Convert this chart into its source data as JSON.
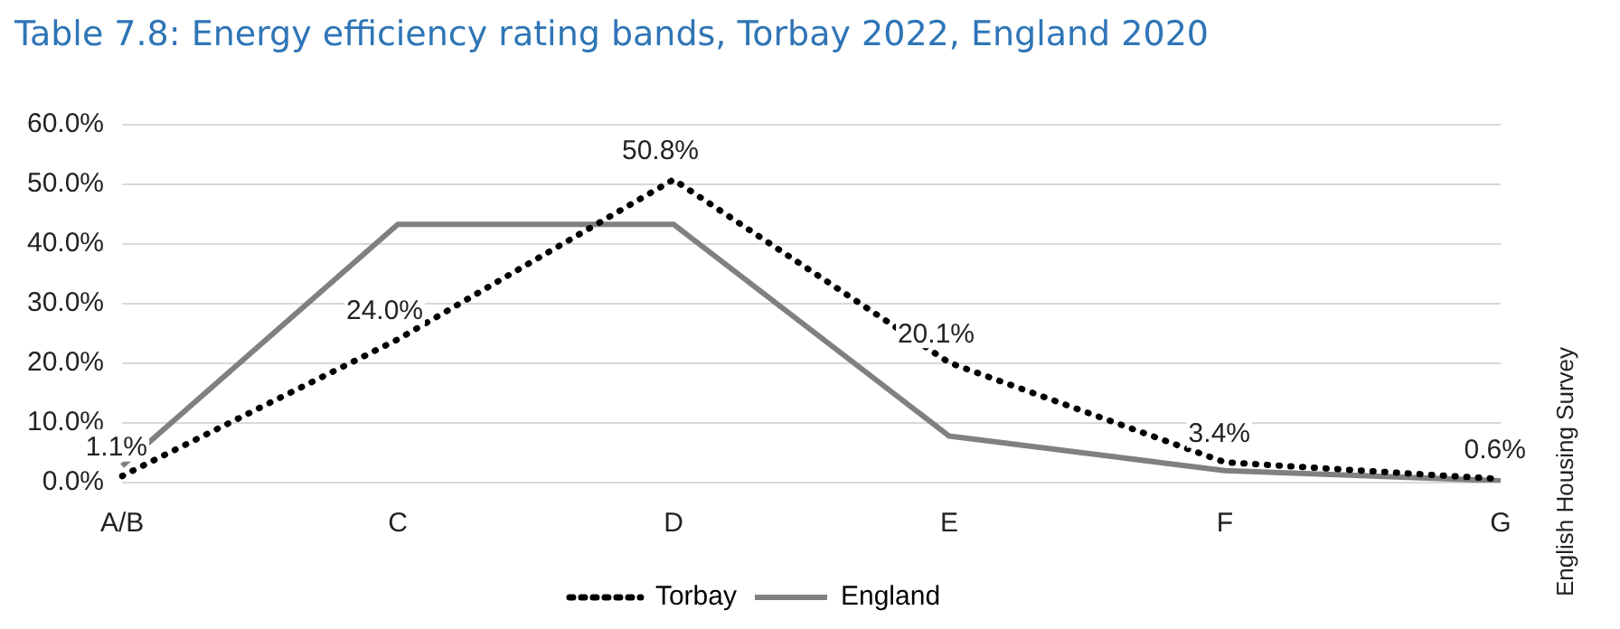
{
  "chart_data": {
    "type": "line",
    "title": "Table 7.8: Energy efficiency rating bands, Torbay 2022, England 2020",
    "categories": [
      "A/B",
      "C",
      "D",
      "E",
      "F",
      "G"
    ],
    "series": [
      {
        "name": "Torbay",
        "color": "#000000",
        "line_style": "dotted",
        "values": [
          1.1,
          24.0,
          50.8,
          20.1,
          3.4,
          0.6
        ],
        "value_labels": [
          "1.1%",
          "24.0%",
          "50.8%",
          "20.1%",
          "3.4%",
          "0.6%"
        ]
      },
      {
        "name": "England",
        "color": "#808080",
        "line_style": "solid",
        "values": [
          2.8,
          43.3,
          43.3,
          7.8,
          2.0,
          0.3
        ]
      }
    ],
    "ylim": [
      0,
      60
    ],
    "yticks": [
      {
        "value": 0,
        "label": "0.0%"
      },
      {
        "value": 10,
        "label": "10.0%"
      },
      {
        "value": 20,
        "label": "20.0%"
      },
      {
        "value": 30,
        "label": "30.0%"
      },
      {
        "value": 40,
        "label": "40.0%"
      },
      {
        "value": 50,
        "label": "50.0%"
      },
      {
        "value": 60,
        "label": "60.0%"
      }
    ],
    "grid": "y",
    "legend": "bottom",
    "marker": "none",
    "annotations": [
      "English Housing Survey"
    ]
  }
}
